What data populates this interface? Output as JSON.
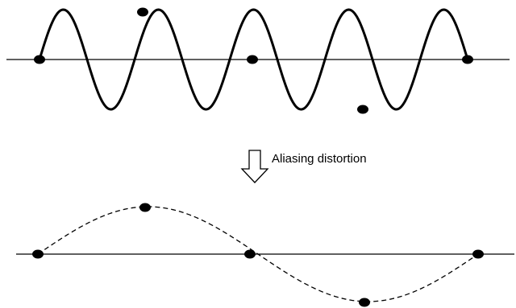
{
  "caption": "Aliasing distortion",
  "colors": {
    "line": "#000000",
    "background": "#ffffff"
  },
  "figure": {
    "top_signal": {
      "style": "solid",
      "cycles_shown": 4.5,
      "sample_phases": [
        "zero",
        "peak",
        "zero",
        "trough",
        "zero"
      ]
    },
    "bottom_signal": {
      "style": "dashed",
      "cycles_shown": 1,
      "sample_phases": [
        "zero",
        "peak",
        "zero",
        "trough",
        "zero"
      ]
    },
    "arrow": "down-arrow-icon"
  }
}
